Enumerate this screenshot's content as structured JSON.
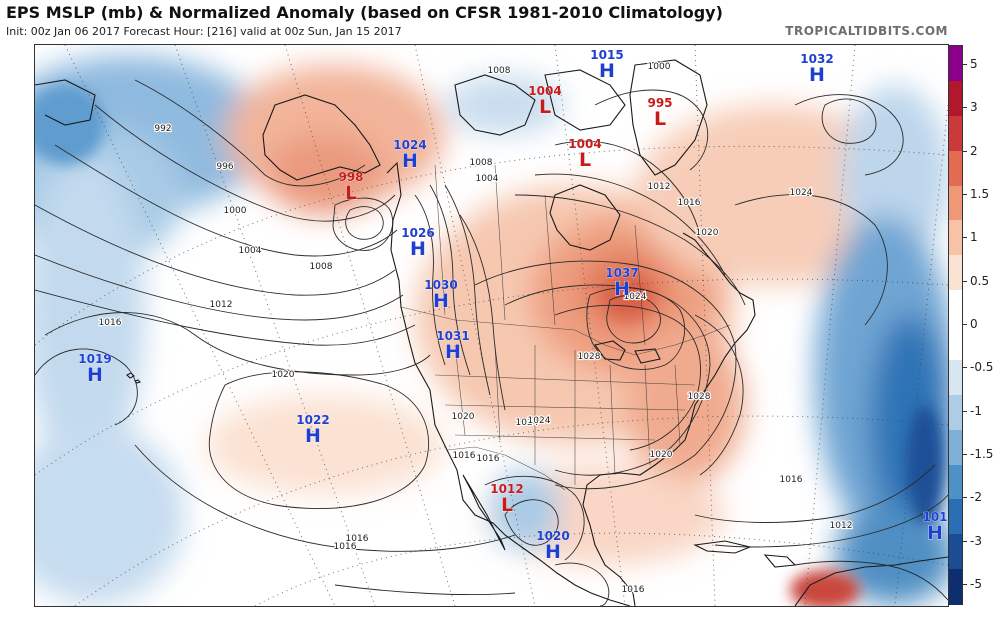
{
  "header": {
    "title": "EPS MSLP (mb) & Normalized Anomaly (based on CFSR 1981-2010 Climatology)",
    "subtitle": "Init: 00z Jan 06 2017   Forecast Hour: [216]   valid at 00z Sun, Jan 15 2017",
    "brand": "TROPICALTIDBITS.COM"
  },
  "colorbar": {
    "labels": [
      "5",
      "3",
      "2",
      "1.5",
      "1",
      "0.5",
      "0",
      "-0.5",
      "-1",
      "-1.5",
      "-2",
      "-3",
      "-5"
    ],
    "colors": [
      "#8b008b",
      "#b2182b",
      "#cb3a3a",
      "#e26b52",
      "#ef9878",
      "#f7c2a6",
      "#fbe3d3",
      "#ffffff",
      "#ffffff",
      "#d8e6f2",
      "#adcce5",
      "#7fb0d8",
      "#4d91c6",
      "#2a6fb4",
      "#1b4c94",
      "#0d2f70"
    ]
  },
  "pressure_centers": [
    {
      "type": "H",
      "value": "1015",
      "color": "#1f3fd0"
    },
    {
      "type": "H",
      "value": "1032",
      "color": "#1f3fd0"
    },
    {
      "type": "L",
      "value": "1004",
      "color": "#c81a1a"
    },
    {
      "type": "L",
      "value": "995",
      "color": "#c81a1a"
    },
    {
      "type": "L",
      "value": "1004",
      "color": "#c81a1a"
    },
    {
      "type": "H",
      "value": "1024",
      "color": "#1f3fd0"
    },
    {
      "type": "L",
      "value": "998",
      "color": "#c81a1a"
    },
    {
      "type": "H",
      "value": "1026",
      "color": "#1f3fd0"
    },
    {
      "type": "H",
      "value": "1037",
      "color": "#1f3fd0"
    },
    {
      "type": "H",
      "value": "1030",
      "color": "#1f3fd0"
    },
    {
      "type": "H",
      "value": "1031",
      "color": "#1f3fd0"
    },
    {
      "type": "H",
      "value": "1019",
      "color": "#1f3fd0"
    },
    {
      "type": "H",
      "value": "1022",
      "color": "#1f3fd0"
    },
    {
      "type": "L",
      "value": "1012",
      "color": "#c81a1a"
    },
    {
      "type": "H",
      "value": "1020",
      "color": "#1f3fd0"
    },
    {
      "type": "H",
      "value": "101",
      "color": "#1f3fd0"
    }
  ],
  "isobar_labels": [
    "992",
    "996",
    "1000",
    "1004",
    "1008",
    "1012",
    "1016",
    "1020",
    "1016",
    "1020",
    "1024",
    "1028",
    "1024",
    "1028",
    "1000",
    "1008",
    "1012",
    "1016",
    "1020",
    "1024",
    "1016",
    "1020",
    "1016",
    "1012",
    "1016",
    "1016",
    "1024",
    "1008",
    "1004",
    "1016"
  ]
}
